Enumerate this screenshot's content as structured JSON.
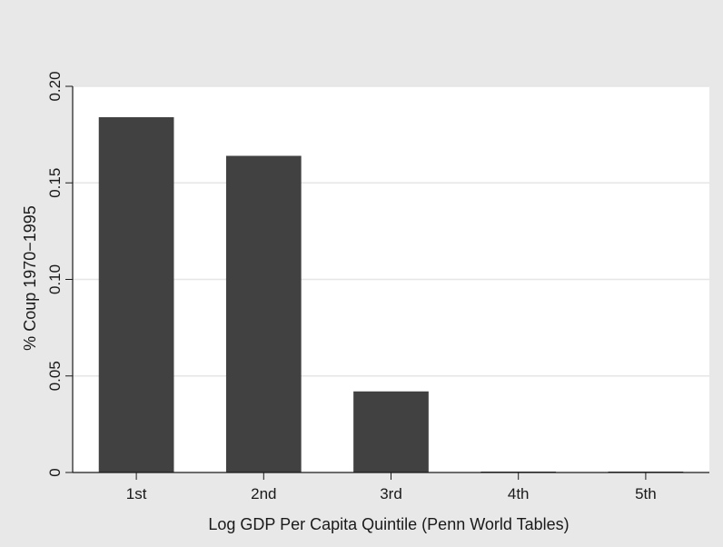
{
  "chart_data": {
    "type": "bar",
    "title": "",
    "xlabel": "Log GDP Per Capita Quintile (Penn World Tables)",
    "ylabel": "% Coup 1970−1995",
    "categories": [
      "1st",
      "2nd",
      "3rd",
      "4th",
      "5th"
    ],
    "values": [
      0.184,
      0.164,
      0.042,
      0.0,
      0.0
    ],
    "ylim": [
      0,
      0.2
    ],
    "yticks": [
      0,
      0.05,
      0.1,
      0.15,
      0.2
    ],
    "ytick_labels": [
      "0",
      "0.05",
      "0.10",
      "0.15",
      "0.20"
    ],
    "grid": true,
    "legend": "none",
    "colors": {
      "bar": "#414141",
      "plot_background": "#ffffff",
      "outer_background": "#e8e8e8",
      "gridline": "#e6e6e6"
    }
  }
}
